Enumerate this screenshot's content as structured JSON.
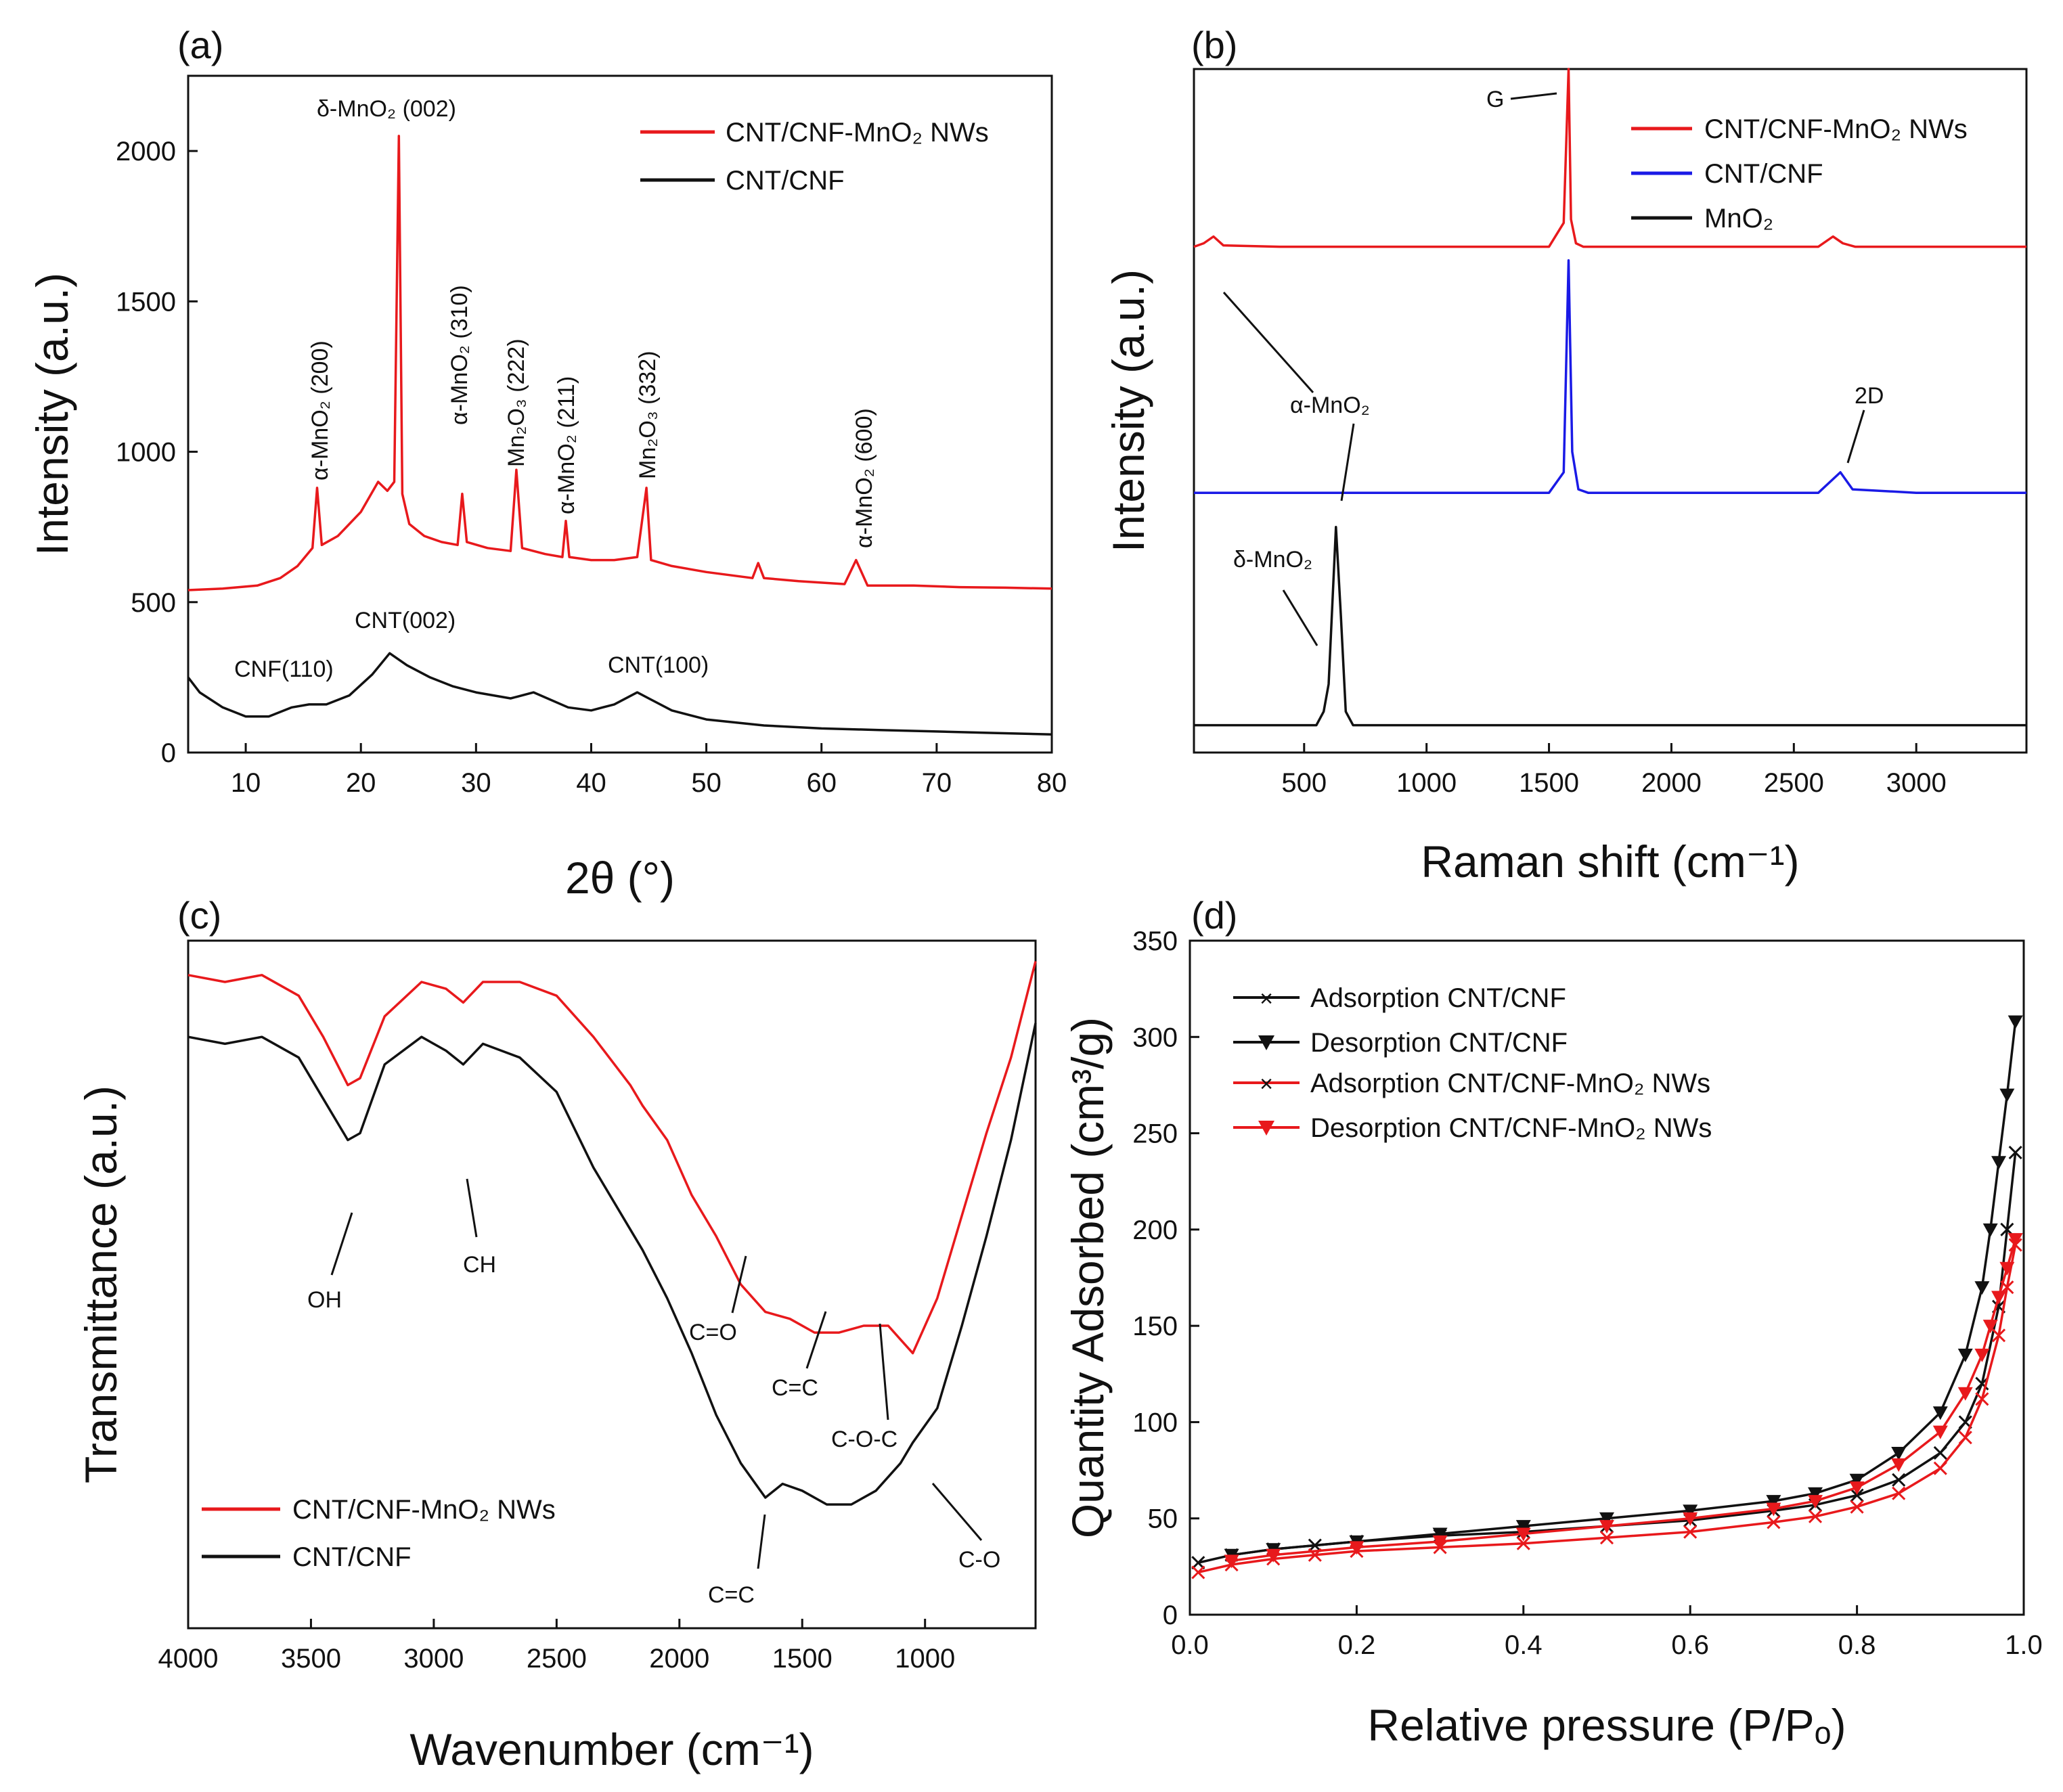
{
  "chart_data": [
    {
      "panel": "(a)",
      "type": "line",
      "xlabel": "2θ (°)",
      "ylabel": "Intensity (a.u.)",
      "xlim": [
        5,
        80
      ],
      "ylim": [
        0,
        2250
      ],
      "xticks": [
        10,
        20,
        30,
        40,
        50,
        60,
        70,
        80
      ],
      "yticks": [
        0,
        500,
        1000,
        1500,
        2000
      ],
      "legend": [
        "CNT/CNF-MnO₂ NWs",
        "CNT/CNF"
      ],
      "series": [
        {
          "name": "CNT/CNF-MnO₂ NWs",
          "color": "#e8191c",
          "x": [
            5,
            8,
            11,
            13,
            14.5,
            15.8,
            16.2,
            16.6,
            18,
            20,
            21.5,
            22.3,
            22.9,
            23.3,
            23.6,
            24.2,
            25.5,
            27,
            28.4,
            28.8,
            29.2,
            31,
            33,
            33.5,
            34,
            36,
            37.5,
            37.8,
            38.1,
            40,
            42,
            44,
            44.8,
            45.2,
            47,
            50,
            54,
            54.5,
            55,
            58,
            62,
            63,
            64,
            68,
            72,
            76,
            80
          ],
          "y": [
            540,
            545,
            555,
            580,
            620,
            680,
            880,
            690,
            720,
            800,
            900,
            870,
            900,
            2050,
            860,
            760,
            720,
            700,
            690,
            860,
            700,
            680,
            670,
            940,
            680,
            660,
            650,
            770,
            650,
            640,
            640,
            650,
            880,
            640,
            620,
            600,
            580,
            630,
            580,
            570,
            560,
            640,
            555,
            555,
            550,
            548,
            545
          ]
        },
        {
          "name": "CNT/CNF",
          "color": "#111111",
          "x": [
            5,
            6,
            8,
            10,
            12,
            14,
            15.5,
            17,
            19,
            21,
            22.5,
            24,
            26,
            28,
            30,
            33,
            35,
            38,
            40,
            42,
            44,
            45,
            47,
            50,
            55,
            60,
            65,
            70,
            75,
            80
          ],
          "y": [
            250,
            200,
            150,
            120,
            120,
            150,
            160,
            160,
            190,
            260,
            330,
            290,
            250,
            220,
            200,
            180,
            200,
            150,
            140,
            160,
            200,
            180,
            140,
            110,
            90,
            80,
            75,
            70,
            65,
            60
          ]
        }
      ],
      "annotations": [
        "δ-MnO₂ (002)",
        "α-MnO₂ (200)",
        "α-MnO₂ (310)",
        "Mn₂O₃ (222)",
        "α-MnO₂ (211)",
        "Mn₂O₃ (332)",
        "α-MnO₂ (600)",
        "CNF(110)",
        "CNT(002)",
        "CNT(100)"
      ]
    },
    {
      "panel": "(b)",
      "type": "line",
      "xlabel": "Raman shift (cm⁻¹)",
      "ylabel": "Intensity (a.u.)",
      "xlim": [
        50,
        3450
      ],
      "ylim": [
        0,
        1
      ],
      "xticks": [
        500,
        1000,
        1500,
        2000,
        2500,
        3000
      ],
      "legend": [
        "CNT/CNF-MnO₂ NWs",
        "CNT/CNF",
        "MnO₂"
      ],
      "series": [
        {
          "name": "CNT/CNF-MnO₂ NWs",
          "color": "#e8191c",
          "x": [
            50,
            90,
            130,
            170,
            400,
            800,
            1200,
            1500,
            1560,
            1580,
            1590,
            1610,
            1640,
            1800,
            2200,
            2600,
            2660,
            2700,
            2750,
            3000,
            3450
          ],
          "y": [
            0.74,
            0.745,
            0.755,
            0.742,
            0.74,
            0.74,
            0.74,
            0.74,
            0.775,
            1.0,
            0.78,
            0.745,
            0.74,
            0.74,
            0.74,
            0.74,
            0.755,
            0.745,
            0.74,
            0.74,
            0.74
          ]
        },
        {
          "name": "CNT/CNF",
          "color": "#1a1ae6",
          "x": [
            50,
            400,
            800,
            1200,
            1500,
            1560,
            1580,
            1595,
            1620,
            1660,
            1900,
            2300,
            2600,
            2660,
            2690,
            2740,
            3000,
            3450
          ],
          "y": [
            0.38,
            0.38,
            0.38,
            0.38,
            0.38,
            0.41,
            0.72,
            0.44,
            0.385,
            0.38,
            0.38,
            0.38,
            0.38,
            0.4,
            0.41,
            0.385,
            0.38,
            0.38
          ]
        },
        {
          "name": "MnO₂",
          "color": "#111111",
          "x": [
            50,
            300,
            550,
            580,
            600,
            630,
            650,
            670,
            700,
            1000,
            2000,
            3000,
            3450
          ],
          "y": [
            0.04,
            0.04,
            0.04,
            0.06,
            0.1,
            0.33,
            0.2,
            0.06,
            0.04,
            0.04,
            0.04,
            0.04,
            0.04
          ]
        }
      ],
      "annotations": [
        "G",
        "α-MnO₂",
        "2D",
        "δ-MnO₂"
      ]
    },
    {
      "panel": "(c)",
      "type": "line",
      "xlabel": "Wavenumber (cm⁻¹)",
      "ylabel": "Transmittance (a.u.)",
      "xlim": [
        4000,
        550
      ],
      "ylim": [
        0,
        1
      ],
      "xticks": [
        4000,
        3500,
        3000,
        2500,
        2000,
        1500,
        1000
      ],
      "legend": [
        "CNT/CNF-MnO₂ NWs",
        "CNT/CNF"
      ],
      "series": [
        {
          "name": "CNT/CNF-MnO₂ NWs",
          "color": "#e8191c",
          "x": [
            4000,
            3850,
            3700,
            3550,
            3450,
            3350,
            3300,
            3200,
            3050,
            2950,
            2880,
            2800,
            2650,
            2500,
            2350,
            2200,
            2150,
            2050,
            1950,
            1850,
            1750,
            1650,
            1550,
            1450,
            1350,
            1250,
            1150,
            1100,
            1050,
            950,
            850,
            750,
            650,
            550
          ],
          "y": [
            0.95,
            0.94,
            0.95,
            0.92,
            0.86,
            0.79,
            0.8,
            0.89,
            0.94,
            0.93,
            0.91,
            0.94,
            0.94,
            0.92,
            0.86,
            0.79,
            0.76,
            0.71,
            0.63,
            0.57,
            0.5,
            0.46,
            0.45,
            0.43,
            0.43,
            0.44,
            0.44,
            0.42,
            0.4,
            0.48,
            0.6,
            0.72,
            0.83,
            0.97
          ]
        },
        {
          "name": "CNT/CNF",
          "color": "#111111",
          "x": [
            4000,
            3850,
            3700,
            3550,
            3450,
            3350,
            3300,
            3200,
            3050,
            2950,
            2880,
            2800,
            2650,
            2500,
            2350,
            2200,
            2150,
            2050,
            1950,
            1850,
            1750,
            1650,
            1580,
            1500,
            1400,
            1300,
            1200,
            1100,
            1050,
            950,
            850,
            750,
            650,
            550
          ],
          "y": [
            0.86,
            0.85,
            0.86,
            0.83,
            0.77,
            0.71,
            0.72,
            0.82,
            0.86,
            0.84,
            0.82,
            0.85,
            0.83,
            0.78,
            0.67,
            0.58,
            0.55,
            0.48,
            0.4,
            0.31,
            0.24,
            0.19,
            0.21,
            0.2,
            0.18,
            0.18,
            0.2,
            0.24,
            0.27,
            0.32,
            0.44,
            0.57,
            0.71,
            0.88
          ]
        }
      ],
      "annotations": [
        "OH",
        "CH",
        "C=O",
        "C=C",
        "C-O-C",
        "C=C",
        "C-O"
      ]
    },
    {
      "panel": "(d)",
      "type": "line",
      "xlabel": "Relative pressure (P/Pₒ)",
      "ylabel": "Quantity Adsorbed (cm³/g)",
      "xlim": [
        0,
        1
      ],
      "ylim": [
        0,
        350
      ],
      "xticks": [
        0.0,
        0.2,
        0.4,
        0.6,
        0.8,
        1.0
      ],
      "yticks": [
        0,
        50,
        100,
        150,
        200,
        250,
        300,
        350
      ],
      "legend": [
        "Adsorption CNT/CNF",
        "Desorption CNT/CNF",
        "Adsorption CNT/CNF-MnO₂ NWs",
        "Desorption CNT/CNF-MnO₂ NWs"
      ],
      "series": [
        {
          "name": "Adsorption CNT/CNF",
          "color": "#111111",
          "marker": "x",
          "x": [
            0.01,
            0.05,
            0.1,
            0.15,
            0.2,
            0.3,
            0.4,
            0.5,
            0.6,
            0.7,
            0.75,
            0.8,
            0.85,
            0.9,
            0.93,
            0.95,
            0.97,
            0.98,
            0.99
          ],
          "y": [
            27,
            31,
            34,
            36,
            38,
            41,
            43,
            46,
            49,
            54,
            57,
            62,
            70,
            84,
            100,
            120,
            160,
            200,
            240
          ]
        },
        {
          "name": "Desorption CNT/CNF",
          "color": "#111111",
          "marker": "triangle-down",
          "x": [
            0.99,
            0.98,
            0.97,
            0.96,
            0.95,
            0.93,
            0.9,
            0.85,
            0.8,
            0.75,
            0.7,
            0.6,
            0.5,
            0.4,
            0.3,
            0.2,
            0.1,
            0.05
          ],
          "y": [
            308,
            270,
            235,
            200,
            170,
            135,
            105,
            84,
            70,
            63,
            59,
            54,
            50,
            46,
            42,
            38,
            34,
            31
          ]
        },
        {
          "name": "Adsorption CNT/CNF-MnO₂ NWs",
          "color": "#e8191c",
          "marker": "x",
          "x": [
            0.01,
            0.05,
            0.1,
            0.15,
            0.2,
            0.3,
            0.4,
            0.5,
            0.6,
            0.7,
            0.75,
            0.8,
            0.85,
            0.9,
            0.93,
            0.95,
            0.97,
            0.98,
            0.99
          ],
          "y": [
            22,
            26,
            29,
            31,
            33,
            35,
            37,
            40,
            43,
            48,
            51,
            56,
            63,
            76,
            92,
            112,
            145,
            170,
            192
          ]
        },
        {
          "name": "Desorption CNT/CNF-MnO₂ NWs",
          "color": "#e8191c",
          "marker": "triangle-down",
          "x": [
            0.99,
            0.98,
            0.97,
            0.96,
            0.95,
            0.93,
            0.9,
            0.85,
            0.8,
            0.75,
            0.7,
            0.6,
            0.5,
            0.4,
            0.3,
            0.2,
            0.1,
            0.05
          ],
          "y": [
            195,
            180,
            165,
            150,
            135,
            115,
            95,
            78,
            66,
            59,
            55,
            50,
            46,
            42,
            38,
            35,
            31,
            28
          ]
        }
      ]
    }
  ]
}
